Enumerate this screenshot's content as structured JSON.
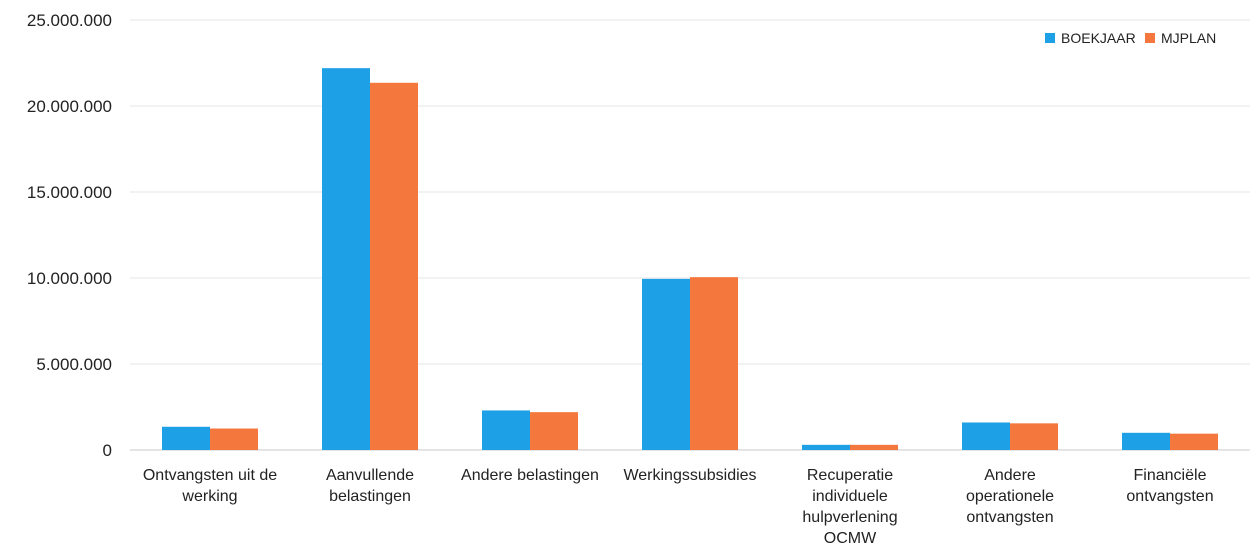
{
  "chart_data": {
    "type": "bar",
    "title": "",
    "xlabel": "",
    "ylabel": "",
    "ylim": [
      0,
      25000000
    ],
    "yticks": [
      "0",
      "5.000.000",
      "10.000.000",
      "15.000.000",
      "20.000.000",
      "25.000.000"
    ],
    "ytick_values": [
      0,
      5000000,
      10000000,
      15000000,
      20000000,
      25000000
    ],
    "grid": true,
    "legend_position": "top-right",
    "categories": [
      [
        "Ontvangsten uit de",
        "werking"
      ],
      [
        "Aanvullende",
        "belastingen"
      ],
      [
        "Andere belastingen"
      ],
      [
        "Werkingssubsidies"
      ],
      [
        "Recuperatie",
        "individuele",
        "hulpverlening",
        "OCMW"
      ],
      [
        "Andere",
        "operationele",
        "ontvangsten"
      ],
      [
        "Financiële",
        "ontvangsten"
      ]
    ],
    "series": [
      {
        "name": "BOEKJAAR",
        "color": "#1ea0e6",
        "values": [
          1350000,
          22200000,
          2300000,
          9950000,
          300000,
          1600000,
          1000000
        ]
      },
      {
        "name": "MJPLAN",
        "color": "#f4783e",
        "values": [
          1250000,
          21350000,
          2200000,
          10050000,
          300000,
          1550000,
          950000
        ]
      }
    ]
  }
}
